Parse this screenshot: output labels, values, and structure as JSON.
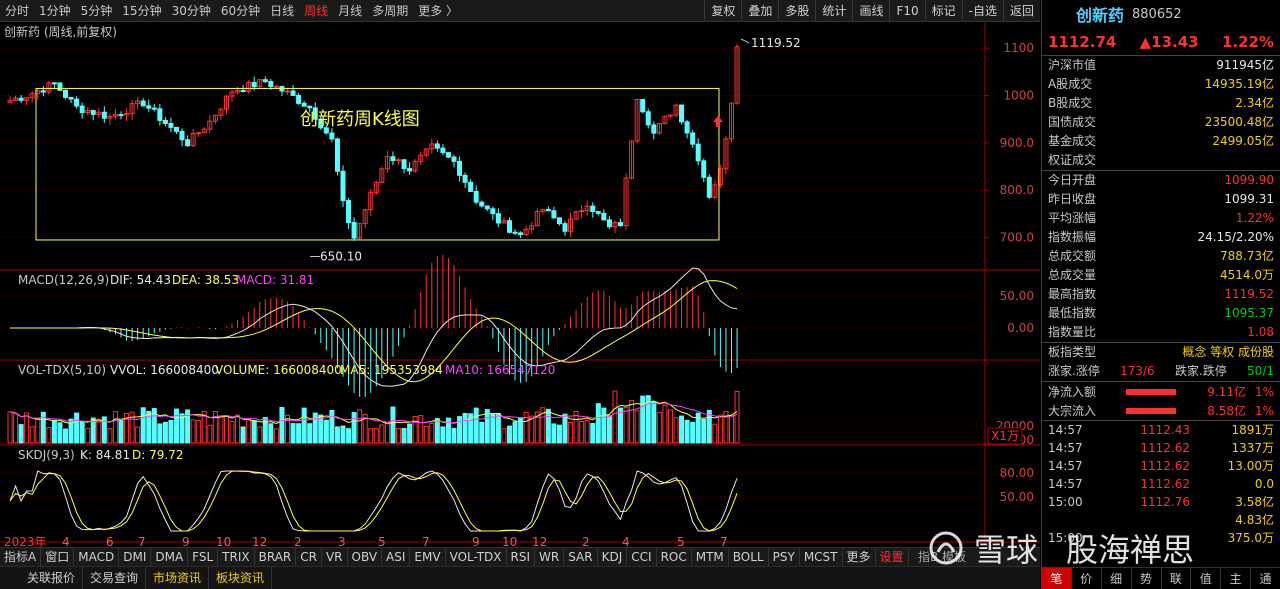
{
  "toolbar": {
    "periods": [
      "分时",
      "1分钟",
      "5分钟",
      "15分钟",
      "30分钟",
      "60分钟",
      "日线",
      "周线",
      "月线",
      "多周期",
      "更多 〉"
    ],
    "active_period": "周线",
    "tools": [
      "复权",
      "叠加",
      "多股",
      "统计",
      "画线",
      "F10",
      "标记",
      "-自选",
      "返回"
    ]
  },
  "chart_data": {
    "type": "candlestick",
    "title": "创新药 (周线,前复权)",
    "annotation": "创新药周K线图",
    "high_label": "1119.52",
    "low_label": "650.10",
    "price_ticks": [
      "1100",
      "1000",
      "900.0",
      "800.0",
      "700.0"
    ],
    "price_range": [
      640,
      1130
    ],
    "x_labels": [
      "2023年",
      "4",
      "6",
      "7",
      "9",
      "10",
      "12",
      "2",
      "3",
      "5",
      "7",
      "9",
      "10",
      "12",
      "2",
      "4",
      "5",
      "7"
    ],
    "rect_range": [
      695,
      1015
    ],
    "macd": {
      "label": "MACD(12,26,9)",
      "dif": "DIF: 54.43",
      "dea": "DEA: 38.53",
      "macd": "MACD: 31.81",
      "ticks": [
        "50.00",
        "0.00"
      ]
    },
    "vol": {
      "label": "VOL-TDX(5,10)",
      "vvol": "VVOL: 166008400",
      "volume": "VOLUME: 166008400",
      "ma5": "MA5: 195353984",
      "ma10": "MA10: 166547120",
      "ticks": [
        "20000",
        "10000"
      ],
      "unit": "X1万"
    },
    "skdj": {
      "label": "SKDJ(9,3)",
      "k": "K: 84.81",
      "d": "D: 79.72",
      "ticks": [
        "80.00",
        "50.00"
      ]
    }
  },
  "bottom_tabs": [
    "指标A",
    "窗口",
    "MACD",
    "DMI",
    "DMA",
    "FSL",
    "TRIX",
    "BRAR",
    "CR",
    "VR",
    "OBV",
    "ASI",
    "EMV",
    "VOL-TDX",
    "RSI",
    "WR",
    "SAR",
    "KDJ",
    "CCI",
    "ROC",
    "MTM",
    "BOLL",
    "PSY",
    "MCST",
    "更多",
    "设置"
  ],
  "bottom_mid": "指B  模板",
  "footer_tabs": [
    "关联报价",
    "交易查询",
    "市场资讯",
    "板块资讯"
  ],
  "panel": {
    "name": "创新药",
    "code": "880652",
    "price": "1112.74",
    "change": "▲13.43",
    "change_pct": "1.22%",
    "market_rows": [
      {
        "label": "沪深市值",
        "value": "911945亿",
        "style": "w"
      },
      {
        "label": "A股成交",
        "value": "14935.19亿",
        "style": ""
      },
      {
        "label": "B股成交",
        "value": "2.34亿",
        "style": ""
      },
      {
        "label": "国债成交",
        "value": "23500.48亿",
        "style": ""
      },
      {
        "label": "基金成交",
        "value": "2499.05亿",
        "style": ""
      },
      {
        "label": "权证成交",
        "value": "",
        "style": ""
      }
    ],
    "index_rows": [
      {
        "label": "今日开盘",
        "value": "1099.90",
        "style": "r"
      },
      {
        "label": "昨日收盘",
        "value": "1099.31",
        "style": "w"
      },
      {
        "label": "平均涨幅",
        "value": "1.22%",
        "style": "r"
      },
      {
        "label": "指数振幅",
        "value": "24.15/2.20%",
        "style": "w"
      },
      {
        "label": "总成交额",
        "value": "788.73亿",
        "style": ""
      },
      {
        "label": "总成交量",
        "value": "4514.0万",
        "style": ""
      },
      {
        "label": "最高指数",
        "value": "1119.52",
        "style": "r"
      },
      {
        "label": "最低指数",
        "value": "1095.37",
        "style": "g"
      },
      {
        "label": "指数量比",
        "value": "1.08",
        "style": "r"
      }
    ],
    "board_type": {
      "label": "板指类型",
      "value": "概念 等权 成份股"
    },
    "updown": {
      "up_label": "涨家.涨停",
      "up_value": "173/6",
      "down_label": "跌家.跌停",
      "down_value": "50/1"
    },
    "flows": [
      {
        "label": "净流入额",
        "amount": "9.11亿",
        "pct": "1%"
      },
      {
        "label": "大宗流入",
        "amount": "8.58亿",
        "pct": "1%"
      }
    ],
    "ticks": [
      {
        "time": "14:57",
        "price": "1112.43",
        "vol": "1891万"
      },
      {
        "time": "14:57",
        "price": "1112.62",
        "vol": "1337万"
      },
      {
        "time": "14:57",
        "price": "1112.62",
        "vol": "13.00万"
      },
      {
        "time": "14:57",
        "price": "1112.62",
        "vol": "0.0"
      },
      {
        "time": "15:00",
        "price": "1112.76",
        "vol": "3.58亿"
      },
      {
        "time": "",
        "price": "",
        "vol": "4.83亿"
      },
      {
        "time": "15:00",
        "price": "",
        "vol": "375.0万"
      }
    ],
    "tabs": [
      "笔",
      "价",
      "细",
      "势",
      "联",
      "值",
      "主",
      "通"
    ]
  },
  "watermark": {
    "left": "雪球",
    "right": "股海禅思"
  },
  "colors": {
    "up": "#ff3030",
    "down": "#54ffff",
    "accent": "#f0d000"
  }
}
